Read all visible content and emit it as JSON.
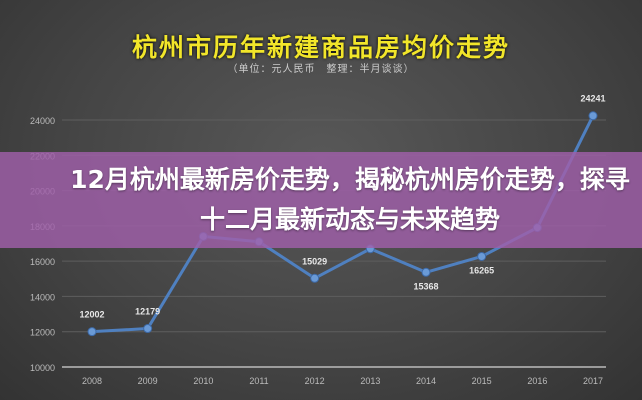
{
  "chart_data": {
    "type": "line",
    "title": "杭州市历年新建商品房均价走势",
    "subtitle": "（单位：元人民币　整理：半月谈谈）",
    "categories": [
      "2008",
      "2009",
      "2010",
      "2011",
      "2012",
      "2013",
      "2014",
      "2015",
      "2016",
      "2017"
    ],
    "values": [
      12002,
      12179,
      17400,
      17100,
      15029,
      16700,
      15368,
      16265,
      17900,
      24241
    ],
    "data_labels": [
      "12002",
      "12179",
      "",
      "",
      "15029",
      "",
      "15368",
      "16265",
      "",
      "24241"
    ],
    "yticks": [
      "10000",
      "12000",
      "14000",
      "16000",
      "18000",
      "20000",
      "22000",
      "24000"
    ],
    "ylim": [
      10000,
      24000
    ],
    "grid": true,
    "colors": {
      "line": "#4f80c0",
      "title": "#f2e62a"
    }
  },
  "banner": {
    "headline": "12月杭州最新房价走势，揭秘杭州房价走势，探寻十二月最新动态与未来趋势"
  }
}
